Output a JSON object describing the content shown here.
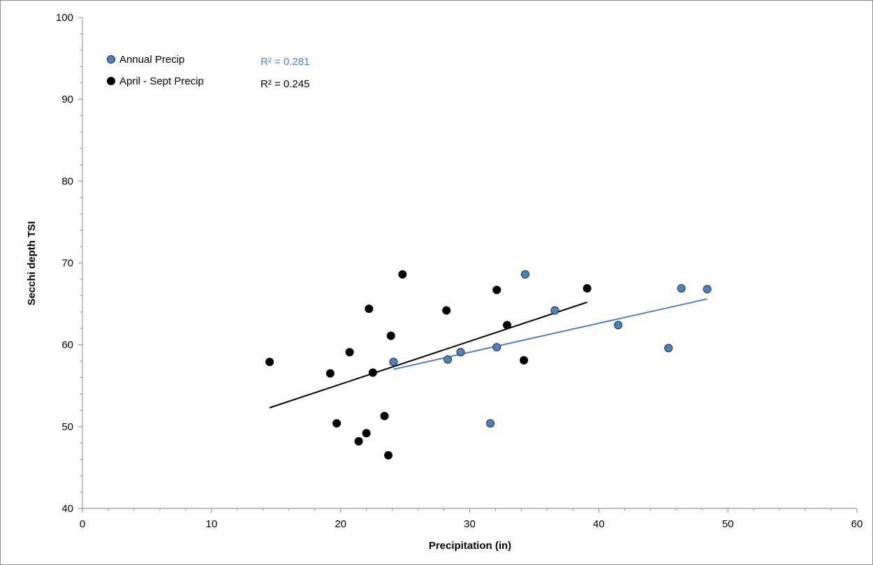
{
  "chart_data": {
    "type": "scatter",
    "title": "",
    "xlabel": "Precipitation (in)",
    "ylabel": "Secchi depth TSI",
    "xlim": [
      0,
      60
    ],
    "ylim": [
      40,
      100
    ],
    "x_ticks": [
      0,
      10,
      20,
      30,
      40,
      50,
      60
    ],
    "y_ticks": [
      40,
      50,
      60,
      70,
      80,
      90,
      100
    ],
    "grid": false,
    "legend_position": "top-left",
    "series": [
      {
        "name": "Annual Precip",
        "color": "#4f81bd",
        "marker_stroke": "#1f2d3d",
        "points": [
          {
            "x": 24.1,
            "y": 57.9
          },
          {
            "x": 28.3,
            "y": 58.2
          },
          {
            "x": 29.3,
            "y": 59.1
          },
          {
            "x": 31.6,
            "y": 50.4
          },
          {
            "x": 32.1,
            "y": 59.7
          },
          {
            "x": 34.3,
            "y": 68.6
          },
          {
            "x": 36.6,
            "y": 64.2
          },
          {
            "x": 41.5,
            "y": 62.4
          },
          {
            "x": 45.4,
            "y": 59.6
          },
          {
            "x": 46.4,
            "y": 66.9
          },
          {
            "x": 48.4,
            "y": 66.8
          }
        ],
        "trendline": {
          "x": [
            24.1,
            48.4
          ],
          "y": [
            57.0,
            65.6
          ],
          "r2_label": "R² = 0.281",
          "color": "#4f81bd"
        }
      },
      {
        "name": "April - Sept Precip",
        "color": "#000000",
        "marker_stroke": "#000000",
        "points": [
          {
            "x": 14.5,
            "y": 57.9
          },
          {
            "x": 19.2,
            "y": 56.5
          },
          {
            "x": 19.7,
            "y": 50.4
          },
          {
            "x": 20.7,
            "y": 59.1
          },
          {
            "x": 21.4,
            "y": 48.2
          },
          {
            "x": 22.0,
            "y": 49.2
          },
          {
            "x": 22.2,
            "y": 64.4
          },
          {
            "x": 22.5,
            "y": 56.6
          },
          {
            "x": 23.4,
            "y": 51.3
          },
          {
            "x": 23.7,
            "y": 46.5
          },
          {
            "x": 23.9,
            "y": 61.1
          },
          {
            "x": 24.8,
            "y": 68.6
          },
          {
            "x": 28.2,
            "y": 64.2
          },
          {
            "x": 32.1,
            "y": 66.7
          },
          {
            "x": 32.9,
            "y": 62.4
          },
          {
            "x": 34.2,
            "y": 58.1
          },
          {
            "x": 39.1,
            "y": 66.9
          }
        ],
        "trendline": {
          "x": [
            14.5,
            39.1
          ],
          "y": [
            52.3,
            65.2
          ],
          "r2_label": "R² = 0.245",
          "color": "#000000"
        }
      }
    ]
  }
}
